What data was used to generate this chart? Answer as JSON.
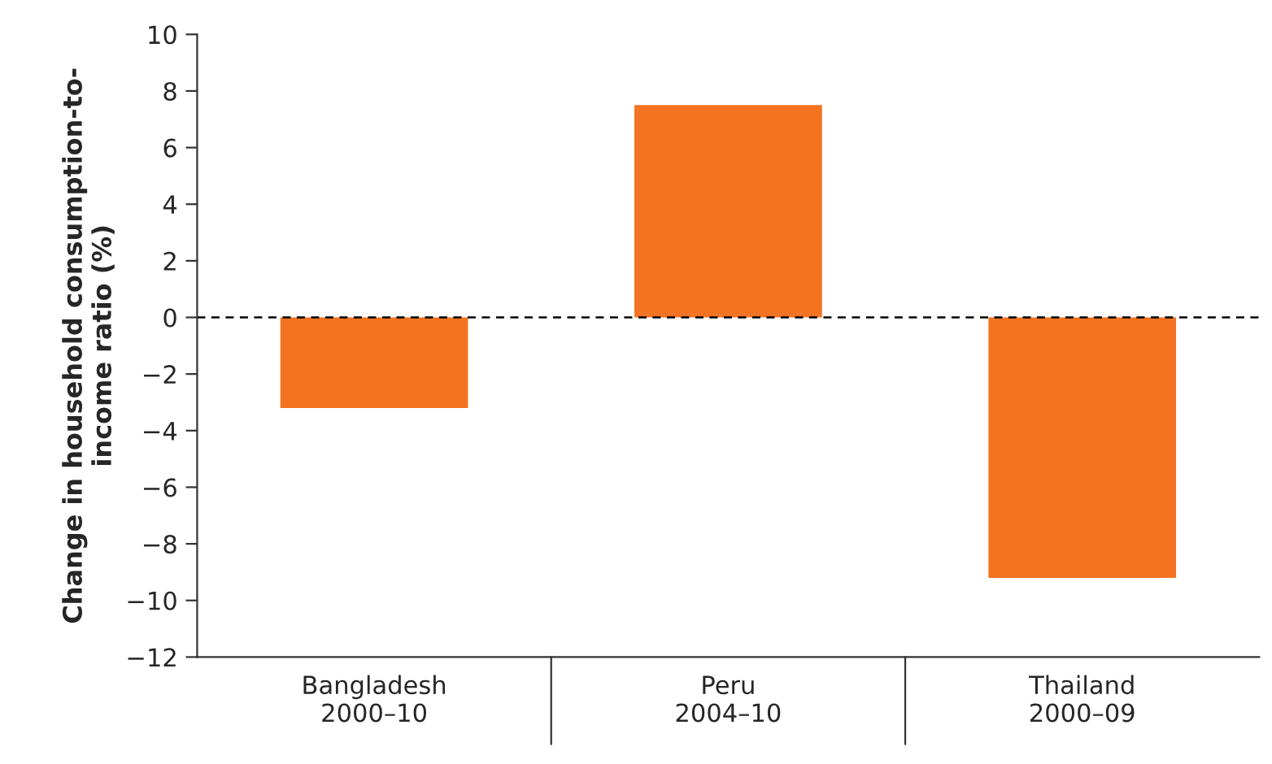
{
  "chart_data": {
    "type": "bar",
    "ylabel": "Change in household consumption-to-\nincome ratio (%)",
    "categories": [
      "Bangladesh\n2000–10",
      "Peru\n2004–10",
      "Thailand\n2000–09"
    ],
    "values": [
      -3.2,
      7.5,
      -9.2
    ],
    "color": "#f37321",
    "ylim": [
      -12,
      10
    ],
    "yticks": [
      {
        "value": -12,
        "label": "−12"
      },
      {
        "value": -10,
        "label": "−10"
      },
      {
        "value": -8,
        "label": "−8"
      },
      {
        "value": -6,
        "label": "−6"
      },
      {
        "value": -4,
        "label": "−4"
      },
      {
        "value": -2,
        "label": "−2"
      },
      0,
      2,
      4,
      6,
      8,
      10
    ],
    "ref_lines": [
      {
        "axis": "y",
        "value": 0,
        "label": null,
        "color": "#000000",
        "line_style": "dashed"
      }
    ],
    "grid": false,
    "legend": false
  }
}
